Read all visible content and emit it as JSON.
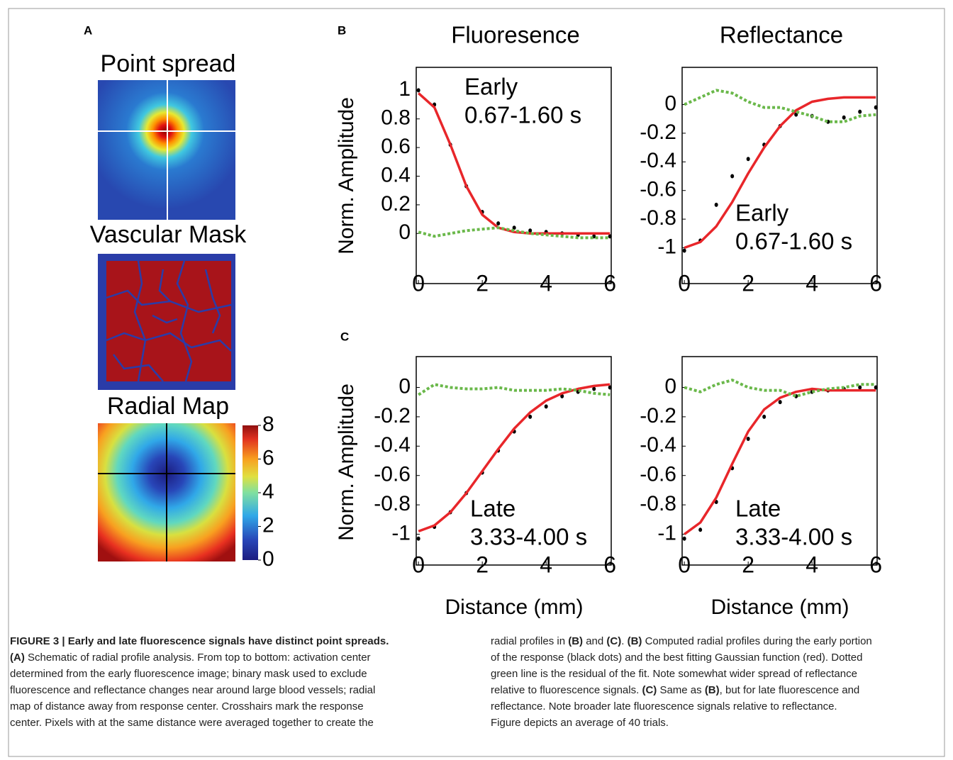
{
  "panel_labels": {
    "a": "A",
    "b": "B",
    "c": "C"
  },
  "column_titles": [
    "Fluoresence",
    "Reflectance"
  ],
  "y_axis_label": "Norm. Amplitude",
  "x_axis_label": "Distance (mm)",
  "panel_a": {
    "images": [
      "Point spread",
      "Vascular Mask",
      "Radial Map"
    ],
    "colorbar": {
      "ylim": [
        0,
        8
      ],
      "yticks": [
        0,
        2,
        4,
        6,
        8
      ]
    }
  },
  "chart_data": [
    {
      "type": "line",
      "annotation": [
        "Early",
        "0.67-1.60 s"
      ],
      "xlim": [
        -0.07,
        6.04
      ],
      "xticks": [
        0,
        2,
        4,
        6
      ],
      "ylim": [
        -0.35,
        1.16
      ],
      "yticks": [
        0,
        0.2,
        0.4,
        0.6,
        0.8,
        1
      ],
      "x": [
        0,
        0.5,
        1,
        1.5,
        2,
        2.5,
        3,
        3.5,
        4,
        4.5,
        5,
        5.5,
        6
      ],
      "series": [
        {
          "color": "#000000",
          "style": "dots",
          "values": [
            1,
            0.9,
            0.62,
            0.33,
            0.15,
            0.07,
            0.04,
            0.02,
            0.01,
            0,
            -0.01,
            -0.02,
            -0.02
          ]
        },
        {
          "color": "#e8262a",
          "style": "solid",
          "values": [
            0.98,
            0.88,
            0.62,
            0.33,
            0.13,
            0.04,
            0.01,
            0,
            0,
            0,
            0,
            0,
            0
          ]
        },
        {
          "color": "#6ab84a",
          "style": "dotted",
          "values": [
            0.01,
            -0.02,
            0,
            0.02,
            0.03,
            0.04,
            0.02,
            0,
            -0.01,
            -0.02,
            -0.03,
            -0.03,
            -0.03
          ]
        }
      ]
    },
    {
      "type": "line",
      "annotation": [
        "Early",
        "0.67-1.60 s"
      ],
      "xlim": [
        -0.07,
        6.04
      ],
      "xticks": [
        0,
        2,
        4,
        6
      ],
      "ylim": [
        -1.25,
        0.26
      ],
      "yticks": [
        0,
        -0.2,
        -0.4,
        -0.6,
        -0.8,
        -1
      ],
      "x": [
        0,
        0.5,
        1,
        1.5,
        2,
        2.5,
        3,
        3.5,
        4,
        4.5,
        5,
        5.5,
        6
      ],
      "series": [
        {
          "color": "#000000",
          "style": "dots",
          "values": [
            -1.02,
            -0.95,
            -0.7,
            -0.5,
            -0.38,
            -0.28,
            -0.15,
            -0.07,
            -0.08,
            -0.12,
            -0.09,
            -0.05,
            -0.02
          ]
        },
        {
          "color": "#e8262a",
          "style": "solid",
          "values": [
            -1,
            -0.96,
            -0.85,
            -0.68,
            -0.48,
            -0.3,
            -0.15,
            -0.04,
            0.02,
            0.04,
            0.05,
            0.05,
            0.05
          ]
        },
        {
          "color": "#6ab84a",
          "style": "dotted",
          "values": [
            0,
            0.05,
            0.1,
            0.08,
            0.02,
            -0.02,
            -0.02,
            -0.05,
            -0.08,
            -0.12,
            -0.12,
            -0.08,
            -0.07
          ]
        }
      ]
    },
    {
      "type": "line",
      "annotation": [
        "Late",
        "3.33-4.00 s"
      ],
      "xlim": [
        -0.07,
        6.04
      ],
      "xticks": [
        0,
        2,
        4,
        6
      ],
      "ylim": [
        -1.21,
        0.21
      ],
      "yticks": [
        0,
        -0.2,
        -0.4,
        -0.6,
        -0.8,
        -1
      ],
      "x": [
        0,
        0.5,
        1,
        1.5,
        2,
        2.5,
        3,
        3.5,
        4,
        4.5,
        5,
        5.5,
        6
      ],
      "series": [
        {
          "color": "#000000",
          "style": "dots",
          "values": [
            -1.03,
            -0.95,
            -0.85,
            -0.72,
            -0.58,
            -0.43,
            -0.3,
            -0.2,
            -0.13,
            -0.06,
            -0.03,
            -0.01,
            0
          ]
        },
        {
          "color": "#e8262a",
          "style": "solid",
          "values": [
            -0.98,
            -0.94,
            -0.85,
            -0.72,
            -0.57,
            -0.42,
            -0.28,
            -0.17,
            -0.09,
            -0.04,
            -0.01,
            0.01,
            0.02
          ]
        },
        {
          "color": "#6ab84a",
          "style": "dotted",
          "values": [
            -0.05,
            0.02,
            0,
            -0.01,
            -0.01,
            0,
            -0.02,
            -0.02,
            -0.02,
            -0.01,
            -0.02,
            -0.04,
            -0.05
          ]
        }
      ]
    },
    {
      "type": "line",
      "annotation": [
        "Late",
        "3.33-4.00 s"
      ],
      "xlim": [
        -0.07,
        6.04
      ],
      "xticks": [
        0,
        2,
        4,
        6
      ],
      "ylim": [
        -1.21,
        0.21
      ],
      "yticks": [
        0,
        -0.2,
        -0.4,
        -0.6,
        -0.8,
        -1
      ],
      "x": [
        0,
        0.5,
        1,
        1.5,
        2,
        2.5,
        3,
        3.5,
        4,
        4.5,
        5,
        5.5,
        6
      ],
      "series": [
        {
          "color": "#000000",
          "style": "dots",
          "values": [
            -1.03,
            -0.97,
            -0.78,
            -0.55,
            -0.35,
            -0.2,
            -0.1,
            -0.06,
            -0.03,
            -0.02,
            -0.01,
            0,
            0
          ]
        },
        {
          "color": "#e8262a",
          "style": "solid",
          "values": [
            -1,
            -0.92,
            -0.75,
            -0.52,
            -0.3,
            -0.15,
            -0.07,
            -0.03,
            -0.01,
            -0.02,
            -0.02,
            -0.02,
            -0.02
          ]
        },
        {
          "color": "#6ab84a",
          "style": "dotted",
          "values": [
            0,
            -0.03,
            0.02,
            0.05,
            0,
            -0.02,
            -0.02,
            -0.06,
            -0.03,
            -0.01,
            0,
            0.02,
            0.02
          ]
        }
      ]
    }
  ],
  "caption": {
    "left": [
      [
        {
          "t": "FIGURE 3 | Early and late fluorescence signals have distinct point spreads.",
          "b": true
        }
      ],
      [
        {
          "t": "(A)",
          "b": true
        },
        {
          "t": " Schematic of radial profile analysis. From top to bottom: activation center"
        }
      ],
      [
        {
          "t": "determined from the early fluorescence image; binary mask used to exclude"
        }
      ],
      [
        {
          "t": "fluorescence and reflectance changes near around large blood vessels; radial"
        }
      ],
      [
        {
          "t": "map of distance away from response center. Crosshairs mark the response"
        }
      ],
      [
        {
          "t": "center. Pixels with at the same distance were averaged together to create the"
        }
      ]
    ],
    "right": [
      [
        {
          "t": "radial profiles in "
        },
        {
          "t": "(B)",
          "b": true
        },
        {
          "t": " and "
        },
        {
          "t": "(C)",
          "b": true
        },
        {
          "t": ". "
        },
        {
          "t": "(B)",
          "b": true
        },
        {
          "t": " Computed radial profiles during the early portion"
        }
      ],
      [
        {
          "t": "of the response (black dots) and the best fitting Gaussian function (red). Dotted"
        }
      ],
      [
        {
          "t": "green line is the residual of the fit. Note somewhat wider spread of reflectance"
        }
      ],
      [
        {
          "t": "relative to fluorescence signals. "
        },
        {
          "t": "(C)",
          "b": true
        },
        {
          "t": " Same as "
        },
        {
          "t": "(B)",
          "b": true
        },
        {
          "t": ", but for late fluorescence and"
        }
      ],
      [
        {
          "t": "reflectance. Note broader late fluorescence signals relative to reflectance."
        }
      ],
      [
        {
          "t": "Figure depicts an average of 40 trials."
        }
      ]
    ]
  }
}
